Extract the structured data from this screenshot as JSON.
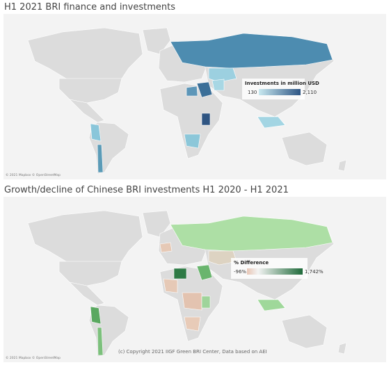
{
  "maps": [
    {
      "title": "H1 2021 BRI finance and investments",
      "legend": {
        "title": "Investments in million USD",
        "min_label": "130",
        "max_label": "2,110"
      },
      "attribution": "© 2021 Mapbox © OpenStreetMap"
    },
    {
      "title": "Growth/decline of Chinese BRI investments H1 2020 - H1 2021",
      "legend": {
        "title": "% Difference",
        "min_label": "-96%",
        "max_label": "1,742%"
      },
      "attribution": "© 2021 Mapbox © OpenStreetMap",
      "copyright": "(c) Copyright 2021 IIGF Green BRI Center, Data based on AEI"
    }
  ]
}
